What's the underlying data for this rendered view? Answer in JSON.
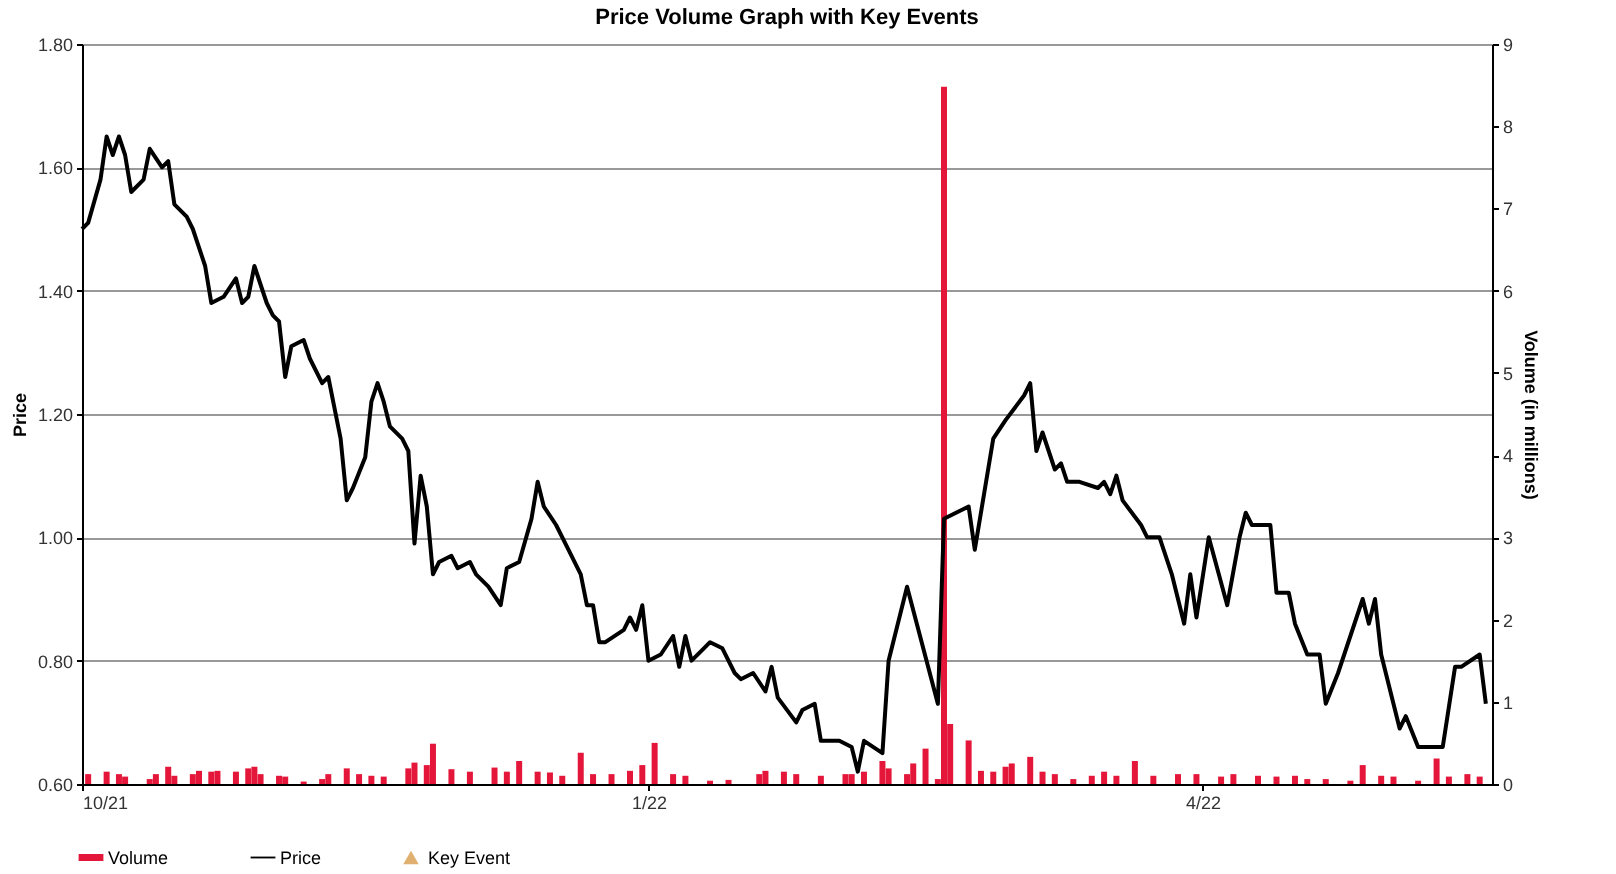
{
  "chart_data": {
    "type": "line",
    "title": "Price Volume Graph with Key Events",
    "ylabel": "Price",
    "y2label": "Volume (in millions)",
    "xlim": [
      "2021-10-01",
      "2022-05-18"
    ],
    "xticks": [
      {
        "value": "2021-10-01",
        "label": "10/21"
      },
      {
        "value": "2022-01-01",
        "label": "1/22"
      },
      {
        "value": "2022-04-01",
        "label": "4/22"
      }
    ],
    "ylim": [
      0.6,
      1.8
    ],
    "yticks": [
      {
        "value": 0.6,
        "label": "0.60"
      },
      {
        "value": 0.8,
        "label": "0.80"
      },
      {
        "value": 1.0,
        "label": "1.00"
      },
      {
        "value": 1.2,
        "label": "1.20"
      },
      {
        "value": 1.4,
        "label": "1.40"
      },
      {
        "value": 1.6,
        "label": "1.60"
      },
      {
        "value": 1.8,
        "label": "1.80"
      }
    ],
    "y2lim": [
      0,
      9
    ],
    "y2ticks": [
      0,
      1,
      2,
      3,
      4,
      5,
      6,
      7,
      8,
      9
    ],
    "grid": "y",
    "legend": "bottom",
    "series": [
      {
        "name": "Volume",
        "type": "bar",
        "axis": "y2",
        "color": "#e4173a",
        "x": [
          "2021-10-02",
          "2021-10-05",
          "2021-10-07",
          "2021-10-08",
          "2021-10-12",
          "2021-10-13",
          "2021-10-15",
          "2021-10-16",
          "2021-10-19",
          "2021-10-20",
          "2021-10-22",
          "2021-10-23",
          "2021-10-26",
          "2021-10-28",
          "2021-10-29",
          "2021-10-30",
          "2021-11-02",
          "2021-11-03",
          "2021-11-06",
          "2021-11-09",
          "2021-11-10",
          "2021-11-13",
          "2021-11-15",
          "2021-11-17",
          "2021-11-19",
          "2021-11-23",
          "2021-11-24",
          "2021-11-26",
          "2021-11-27",
          "2021-11-30",
          "2021-12-03",
          "2021-12-07",
          "2021-12-09",
          "2021-12-11",
          "2021-12-14",
          "2021-12-16",
          "2021-12-18",
          "2021-12-21",
          "2021-12-23",
          "2021-12-26",
          "2021-12-29",
          "2021-12-31",
          "2022-01-02",
          "2022-01-05",
          "2022-01-07",
          "2022-01-11",
          "2022-01-14",
          "2022-01-19",
          "2022-01-20",
          "2022-01-23",
          "2022-01-25",
          "2022-01-29",
          "2022-02-02",
          "2022-02-03",
          "2022-02-05",
          "2022-02-08",
          "2022-02-09",
          "2022-02-12",
          "2022-02-13",
          "2022-02-15",
          "2022-02-17",
          "2022-02-18",
          "2022-02-19",
          "2022-02-22",
          "2022-02-24",
          "2022-02-26",
          "2022-02-28",
          "2022-03-01",
          "2022-03-04",
          "2022-03-06",
          "2022-03-08",
          "2022-03-11",
          "2022-03-14",
          "2022-03-16",
          "2022-03-18",
          "2022-03-21",
          "2022-03-24",
          "2022-03-28",
          "2022-03-31",
          "2022-04-04",
          "2022-04-06",
          "2022-04-10",
          "2022-04-13",
          "2022-04-16",
          "2022-04-18",
          "2022-04-21",
          "2022-04-25",
          "2022-04-27",
          "2022-04-30",
          "2022-05-02",
          "2022-05-06",
          "2022-05-09",
          "2022-05-11",
          "2022-05-14",
          "2022-05-16"
        ],
        "values": [
          0.12,
          0.15,
          0.12,
          0.09,
          0.06,
          0.12,
          0.21,
          0.1,
          0.12,
          0.16,
          0.15,
          0.16,
          0.15,
          0.19,
          0.21,
          0.12,
          0.1,
          0.09,
          0.03,
          0.06,
          0.12,
          0.19,
          0.12,
          0.1,
          0.09,
          0.19,
          0.26,
          0.23,
          0.49,
          0.18,
          0.15,
          0.2,
          0.15,
          0.28,
          0.15,
          0.14,
          0.1,
          0.38,
          0.12,
          0.12,
          0.16,
          0.23,
          0.5,
          0.12,
          0.1,
          0.04,
          0.05,
          0.12,
          0.16,
          0.15,
          0.12,
          0.1,
          0.12,
          0.12,
          0.15,
          0.28,
          0.19,
          0.12,
          0.25,
          0.43,
          0.06,
          8.48,
          0.73,
          0.53,
          0.16,
          0.15,
          0.21,
          0.25,
          0.33,
          0.15,
          0.12,
          0.06,
          0.1,
          0.15,
          0.1,
          0.28,
          0.1,
          0.12,
          0.12,
          0.09,
          0.12,
          0.1,
          0.09,
          0.1,
          0.06,
          0.06,
          0.04,
          0.23,
          0.1,
          0.09,
          0.04,
          0.31,
          0.09,
          0.12,
          0.09
        ]
      },
      {
        "name": "Price",
        "color": "#000000",
        "x": [
          "2021-10-01",
          "2021-10-02",
          "2021-10-04",
          "2021-10-05",
          "2021-10-06",
          "2021-10-07",
          "2021-10-08",
          "2021-10-09",
          "2021-10-11",
          "2021-10-12",
          "2021-10-14",
          "2021-10-15",
          "2021-10-16",
          "2021-10-18",
          "2021-10-19",
          "2021-10-21",
          "2021-10-22",
          "2021-10-24",
          "2021-10-26",
          "2021-10-27",
          "2021-10-28",
          "2021-10-29",
          "2021-10-31",
          "2021-11-01",
          "2021-11-02",
          "2021-11-03",
          "2021-11-04",
          "2021-11-06",
          "2021-11-07",
          "2021-11-09",
          "2021-11-10",
          "2021-11-11",
          "2021-11-12",
          "2021-11-13",
          "2021-11-14",
          "2021-11-16",
          "2021-11-17",
          "2021-11-18",
          "2021-11-19",
          "2021-11-20",
          "2021-11-22",
          "2021-11-23",
          "2021-11-24",
          "2021-11-25",
          "2021-11-26",
          "2021-11-27",
          "2021-11-28",
          "2021-11-30",
          "2021-12-01",
          "2021-12-03",
          "2021-12-04",
          "2021-12-06",
          "2021-12-08",
          "2021-12-09",
          "2021-12-11",
          "2021-12-13",
          "2021-12-14",
          "2021-12-15",
          "2021-12-17",
          "2021-12-19",
          "2021-12-21",
          "2021-12-22",
          "2021-12-23",
          "2021-12-24",
          "2021-12-25",
          "2021-12-28",
          "2021-12-29",
          "2021-12-30",
          "2021-12-31",
          "2022-01-01",
          "2022-01-03",
          "2022-01-05",
          "2022-01-06",
          "2022-01-07",
          "2022-01-08",
          "2022-01-10",
          "2022-01-11",
          "2022-01-13",
          "2022-01-15",
          "2022-01-16",
          "2022-01-18",
          "2022-01-20",
          "2022-01-21",
          "2022-01-22",
          "2022-01-25",
          "2022-01-26",
          "2022-01-28",
          "2022-01-29",
          "2022-02-01",
          "2022-02-03",
          "2022-02-04",
          "2022-02-05",
          "2022-02-08",
          "2022-02-09",
          "2022-02-12",
          "2022-02-17",
          "2022-02-18",
          "2022-02-22",
          "2022-02-23",
          "2022-02-26",
          "2022-02-28",
          "2022-03-03",
          "2022-03-04",
          "2022-03-05",
          "2022-03-06",
          "2022-03-08",
          "2022-03-09",
          "2022-03-10",
          "2022-03-12",
          "2022-03-15",
          "2022-03-16",
          "2022-03-17",
          "2022-03-18",
          "2022-03-19",
          "2022-03-22",
          "2022-03-23",
          "2022-03-25",
          "2022-03-27",
          "2022-03-29",
          "2022-03-30",
          "2022-03-31",
          "2022-04-02",
          "2022-04-05",
          "2022-04-07",
          "2022-04-08",
          "2022-04-09",
          "2022-04-12",
          "2022-04-13",
          "2022-04-15",
          "2022-04-16",
          "2022-04-18",
          "2022-04-20",
          "2022-04-21",
          "2022-04-23",
          "2022-04-27",
          "2022-04-28",
          "2022-04-29",
          "2022-04-30",
          "2022-05-03",
          "2022-05-04",
          "2022-05-06",
          "2022-05-07",
          "2022-05-10",
          "2022-05-12",
          "2022-05-13",
          "2022-05-16",
          "2022-05-17"
        ],
        "values": [
          1.5,
          1.51,
          1.58,
          1.65,
          1.62,
          1.65,
          1.62,
          1.56,
          1.58,
          1.63,
          1.6,
          1.61,
          1.54,
          1.52,
          1.5,
          1.44,
          1.38,
          1.39,
          1.42,
          1.38,
          1.39,
          1.44,
          1.38,
          1.36,
          1.35,
          1.26,
          1.31,
          1.32,
          1.29,
          1.25,
          1.26,
          1.21,
          1.16,
          1.06,
          1.08,
          1.13,
          1.22,
          1.25,
          1.22,
          1.18,
          1.16,
          1.14,
          0.99,
          1.1,
          1.05,
          0.94,
          0.96,
          0.97,
          0.95,
          0.96,
          0.94,
          0.92,
          0.89,
          0.95,
          0.96,
          1.03,
          1.09,
          1.05,
          1.02,
          0.98,
          0.94,
          0.89,
          0.89,
          0.83,
          0.83,
          0.85,
          0.87,
          0.85,
          0.89,
          0.8,
          0.81,
          0.84,
          0.79,
          0.84,
          0.8,
          0.82,
          0.83,
          0.82,
          0.78,
          0.77,
          0.78,
          0.75,
          0.79,
          0.74,
          0.7,
          0.72,
          0.73,
          0.67,
          0.67,
          0.66,
          0.62,
          0.67,
          0.65,
          0.8,
          0.92,
          0.73,
          1.03,
          1.05,
          0.98,
          1.16,
          1.19,
          1.23,
          1.25,
          1.14,
          1.17,
          1.11,
          1.12,
          1.09,
          1.09,
          1.08,
          1.09,
          1.07,
          1.1,
          1.06,
          1.02,
          1.0,
          1.0,
          0.94,
          0.86,
          0.94,
          0.87,
          1.0,
          0.89,
          1.0,
          1.04,
          1.02,
          1.02,
          0.91,
          0.91,
          0.86,
          0.81,
          0.81,
          0.73,
          0.78,
          0.9,
          0.86,
          0.9,
          0.81,
          0.69,
          0.71,
          0.66,
          0.66,
          0.66,
          0.79,
          0.79,
          0.81,
          0.73
        ]
      },
      {
        "name": "Key Event",
        "type": "scatter",
        "marker": "triangle",
        "color": "#e0b070"
      }
    ]
  }
}
